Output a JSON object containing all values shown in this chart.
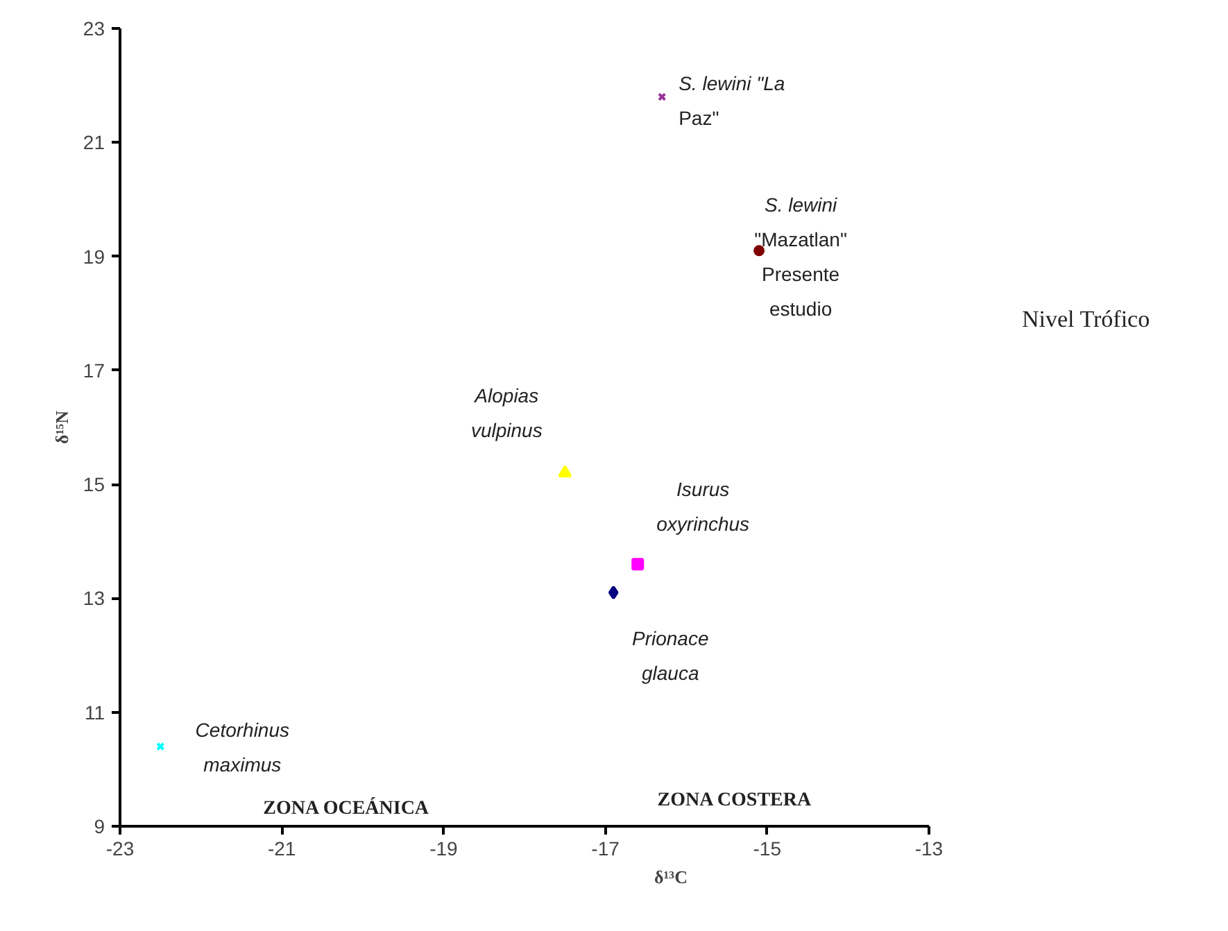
{
  "chart_data": {
    "type": "scatter",
    "xlabel": "δ¹³C",
    "ylabel": "δ¹⁵N",
    "xlim": [
      -23,
      -13
    ],
    "xticks": [
      -23,
      -21,
      -19,
      -17,
      -15,
      -13
    ],
    "ylim": [
      9,
      23
    ],
    "yticks": [
      9,
      11,
      13,
      15,
      17,
      19,
      21,
      23
    ],
    "series": [
      {
        "name": "S. lewini \"La Paz\"",
        "color": "#993399",
        "marker": "cross",
        "x": [
          -16.3
        ],
        "values": [
          21.8
        ]
      },
      {
        "name": "S. lewini \"Mazatlan\" Presente estudio",
        "color": "#800000",
        "marker": "circle",
        "x": [
          -15.1
        ],
        "values": [
          19.1
        ]
      },
      {
        "name": "Alopias vulpinus",
        "color": "#ffff00",
        "marker": "triangle",
        "x": [
          -17.5
        ],
        "values": [
          15.2
        ]
      },
      {
        "name": "Isurus oxyrinchus",
        "color": "#ff00ff",
        "marker": "square",
        "x": [
          -16.6
        ],
        "values": [
          13.6
        ]
      },
      {
        "name": "Prionace glauca",
        "color": "#000080",
        "marker": "diamond",
        "x": [
          -16.9
        ],
        "values": [
          13.1
        ]
      },
      {
        "name": "Cetorhinus maximus",
        "color": "#00ffff",
        "marker": "cross",
        "x": [
          -22.5
        ],
        "values": [
          10.4
        ]
      }
    ],
    "annotations": [
      "Nivel Trófico",
      "ZONA OCEÁNICA",
      "ZONA COSTERA"
    ]
  }
}
